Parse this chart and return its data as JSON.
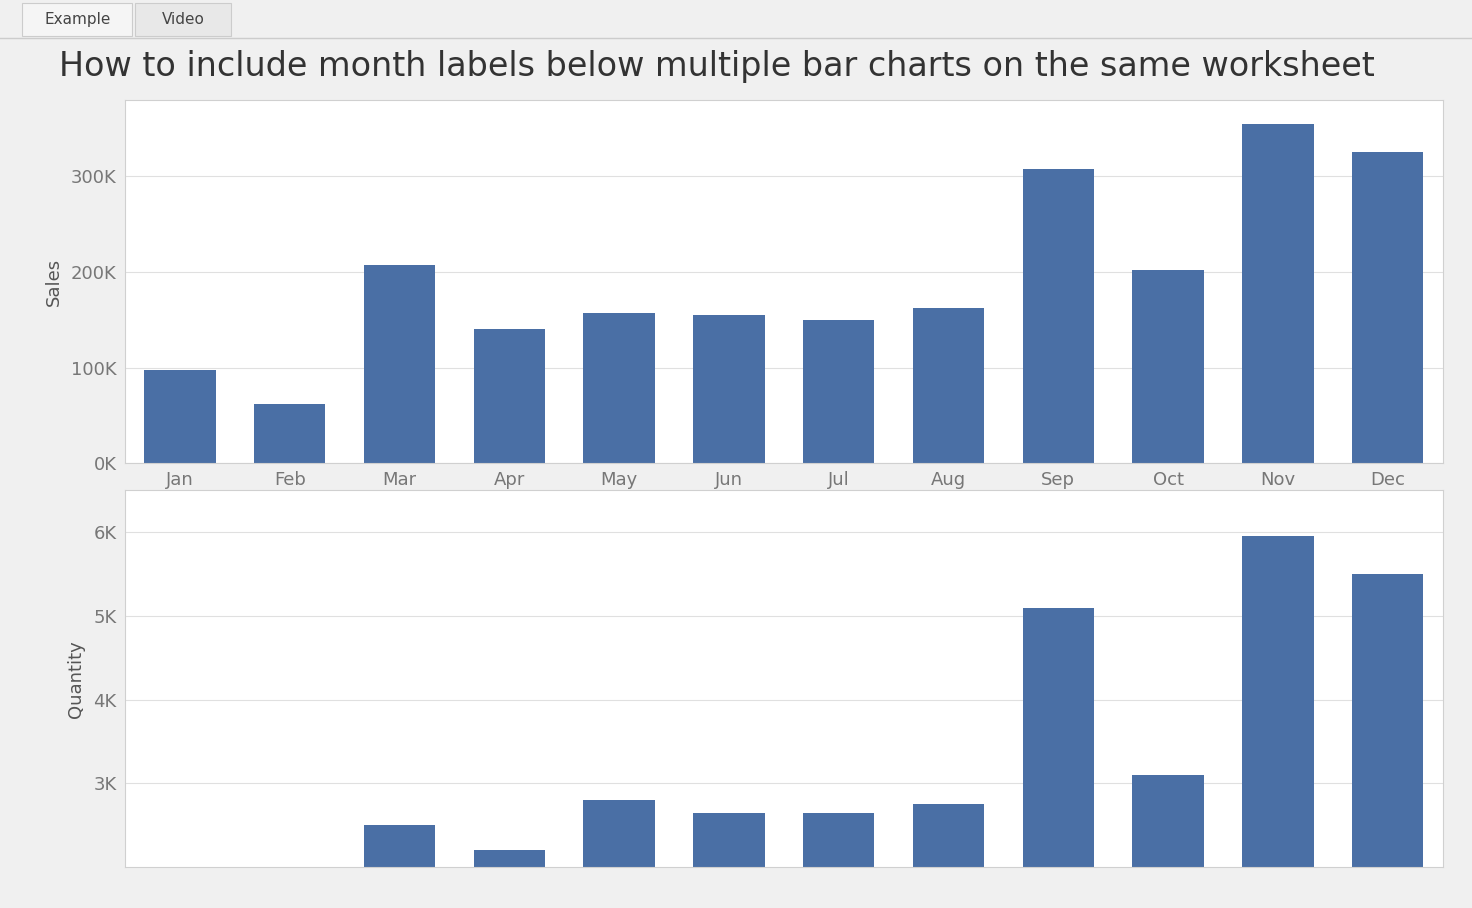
{
  "title": "How to include month labels below multiple bar charts on the same worksheet",
  "months": [
    "Jan",
    "Feb",
    "Mar",
    "Apr",
    "May",
    "Jun",
    "Jul",
    "Aug",
    "Sep",
    "Oct",
    "Nov",
    "Dec"
  ],
  "sales": [
    97000,
    62000,
    207000,
    140000,
    157000,
    155000,
    150000,
    162000,
    308000,
    202000,
    355000,
    325000
  ],
  "quantity": [
    0,
    0,
    2500,
    2200,
    2800,
    2650,
    2650,
    2750,
    5100,
    3100,
    5950,
    5500
  ],
  "bar_color": "#4a6fa5",
  "background_color": "#f0f0f0",
  "plot_bg_color": "#ffffff",
  "title_fontsize": 24,
  "axis_label_fontsize": 13,
  "tick_fontsize": 13,
  "tab_labels": [
    "Example",
    "Video"
  ],
  "ylabel1": "Sales",
  "ylabel2": "Quantity",
  "sales_yticks": [
    0,
    100000,
    200000,
    300000
  ],
  "sales_yticklabels": [
    "0K",
    "100K",
    "200K",
    "300K"
  ],
  "quantity_yticks": [
    3000,
    4000,
    5000,
    6000
  ],
  "quantity_yticklabels": [
    "3K",
    "4K",
    "5K",
    "6K"
  ],
  "tab_bg": "#e8e8e8",
  "active_tab_bg": "#f5f5f5",
  "tab_border": "#cccccc"
}
